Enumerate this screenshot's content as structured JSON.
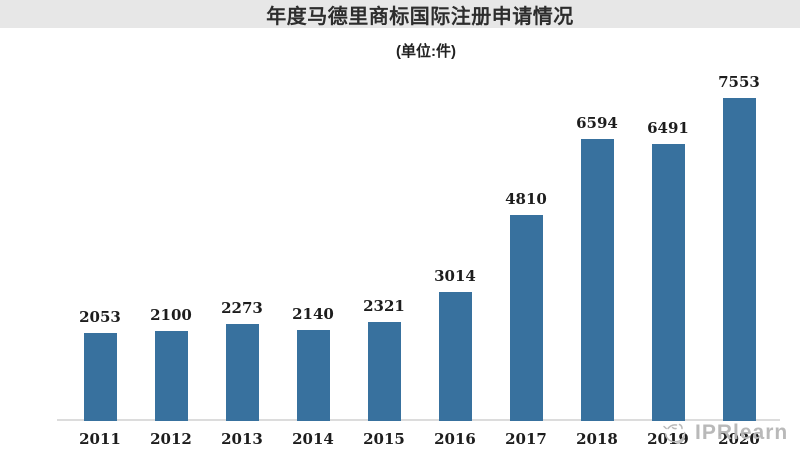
{
  "header": {
    "title": "年度马德里商标国际注册申请情况",
    "subtitle": "(单位:件)"
  },
  "watermark": {
    "text": "IPRlearn",
    "logo_icon": "sketch-bird-circle-icon"
  },
  "colors": {
    "bar": "#38719e",
    "axis_line": "#dcdcdc",
    "title_band_bg": "#e7e7e7",
    "label_text": "#1d1d1d",
    "watermark_gray": "#b6b6b6"
  },
  "chart_data": {
    "type": "bar",
    "title": "年度马德里商标国际注册申请情况",
    "subtitle": "(单位:件)",
    "categories": [
      "2011",
      "2012",
      "2013",
      "2014",
      "2015",
      "2016",
      "2017",
      "2018",
      "2019",
      "2020"
    ],
    "values": [
      2053,
      2100,
      2273,
      2140,
      2321,
      3014,
      4810,
      6594,
      6491,
      7553
    ],
    "xlabel": "",
    "ylabel": "",
    "ylim": [
      0,
      8000
    ],
    "grid": false,
    "legend": false,
    "value_labels": true,
    "bar_color": "#38719e",
    "axis_line_color": "#dcdcdc"
  }
}
